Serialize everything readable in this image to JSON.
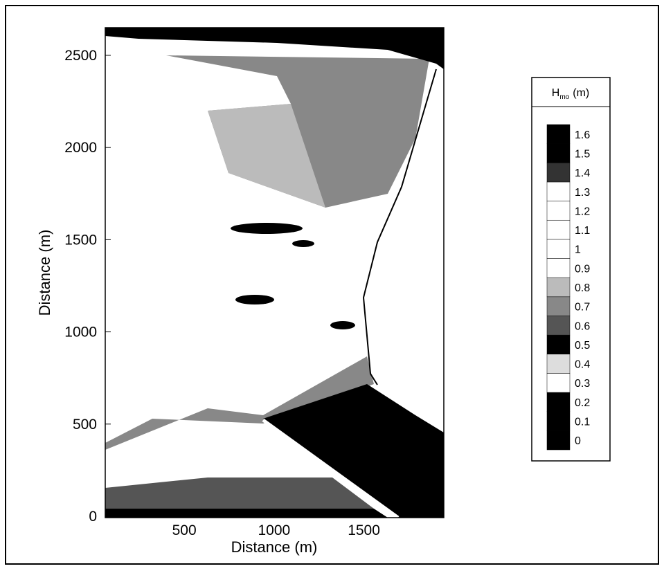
{
  "chart_data": {
    "type": "contour",
    "xlabel": "Distance (m)",
    "ylabel": "Distance (m)",
    "xlim": [
      60,
      1945
    ],
    "ylim": [
      0,
      2650
    ],
    "xticks": [
      500,
      1000,
      1500
    ],
    "yticks": [
      0,
      500,
      1000,
      1500,
      2000,
      2500
    ],
    "colorbar": {
      "title": "H",
      "title_sub": "mo",
      "title_unit": "(m)",
      "levels": [
        0,
        0.1,
        0.2,
        0.3,
        0.4,
        0.5,
        0.6,
        0.7,
        0.8,
        0.9,
        1,
        1.1,
        1.2,
        1.3,
        1.4,
        1.5,
        1.6
      ],
      "colors": [
        "#000000",
        "#000000",
        "#000000",
        "#ffffff",
        "#dddddd",
        "#000000",
        "#555555",
        "#888888",
        "#bbbbbb",
        "#ffffff",
        "#ffffff",
        "#ffffff",
        "#ffffff",
        "#ffffff",
        "#333333",
        "#000000",
        "#000000"
      ]
    }
  }
}
